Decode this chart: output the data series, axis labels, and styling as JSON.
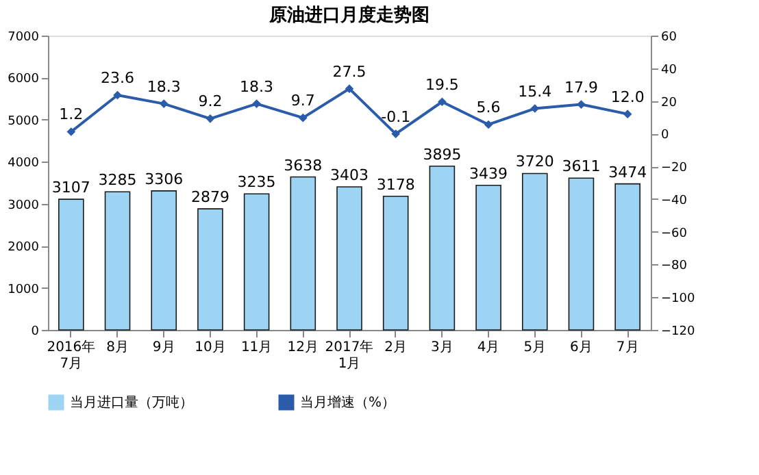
{
  "chart_data": {
    "type": "bar",
    "title": "原油进口月度走势图",
    "categories": [
      "2016年\n7月",
      "8月",
      "9月",
      "10月",
      "11月",
      "12月",
      "2017年\n1月",
      "2月",
      "3月",
      "4月",
      "5月",
      "6月",
      "7月"
    ],
    "series": [
      {
        "name": "当月进口量（万吨）",
        "color": "#9dd3f3",
        "values": [
          3107,
          3285,
          3306,
          2879,
          3235,
          3638,
          3403,
          3178,
          3895,
          3439,
          3720,
          3611,
          3474
        ]
      },
      {
        "name": "当月增速（%）",
        "type": "line",
        "axis": "y2",
        "color": "#2a5caa",
        "marker": "diamond",
        "values": [
          1.2,
          23.6,
          18.3,
          9.2,
          18.3,
          9.7,
          27.5,
          -0.1,
          19.5,
          5.6,
          15.4,
          17.9,
          12.0
        ]
      }
    ],
    "ylim": [
      0,
      7000
    ],
    "yticks": [
      0,
      1000,
      2000,
      3000,
      4000,
      5000,
      6000,
      7000
    ],
    "y2lim": [
      -120,
      60
    ],
    "y2ticks": [
      -120,
      -100,
      -80,
      -60,
      -40,
      -20,
      0,
      20,
      40,
      60
    ],
    "value_labels": [
      [
        "3107",
        "3285",
        "3306",
        "2879",
        "3235",
        "3638",
        "3403",
        "3178",
        "3895",
        "3439",
        "3720",
        "3611",
        "3474"
      ],
      [
        "1.2",
        "23.6",
        "18.3",
        "9.2",
        "18.3",
        "9.7",
        "27.5",
        "-0.1",
        "19.5",
        "5.6",
        "15.4",
        "17.9",
        "12.0"
      ]
    ],
    "legend": "bottom",
    "grid": false
  }
}
